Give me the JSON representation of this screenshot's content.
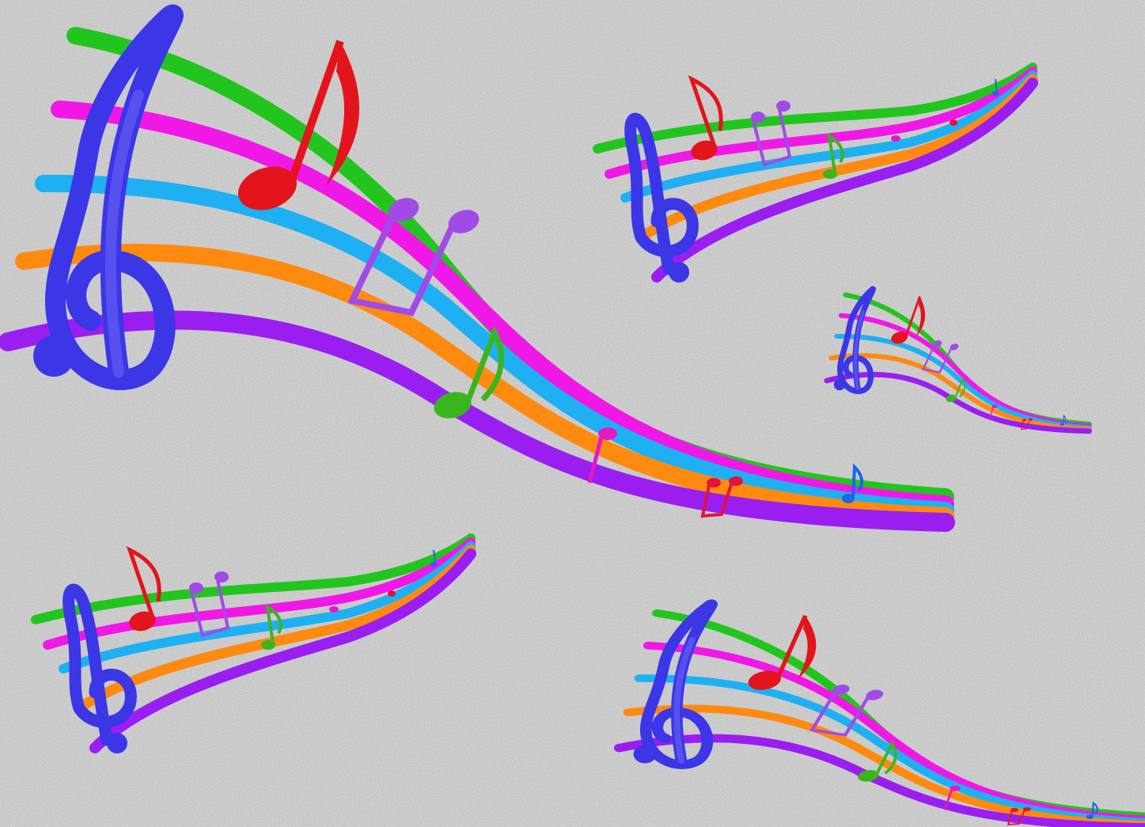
{
  "background": {
    "texture": "gray-granite-noise",
    "base_color": "#9b9b9b",
    "dark_speck": "#3c3c3c",
    "light_speck": "#ededed"
  },
  "staff_line_colors": [
    "#22c51e",
    "#f018e6",
    "#1eb0f2",
    "#ff8a10",
    "#9a1ef0"
  ],
  "clef_color": "#3b36e6",
  "note_colors": {
    "red": "#e3141c",
    "purple": "#a04be6",
    "green": "#3ab51e",
    "pink": "#e618c6",
    "crimson": "#e0143c",
    "blue": "#1a66e6"
  },
  "motifs": [
    {
      "name": "large-wavy-staff",
      "variant": "descending"
    },
    {
      "name": "top-right-staff",
      "variant": "ascending"
    },
    {
      "name": "small-right-staff",
      "variant": "descending"
    },
    {
      "name": "bottom-left-staff",
      "variant": "ascending"
    },
    {
      "name": "bottom-right-staff",
      "variant": "descending"
    }
  ]
}
